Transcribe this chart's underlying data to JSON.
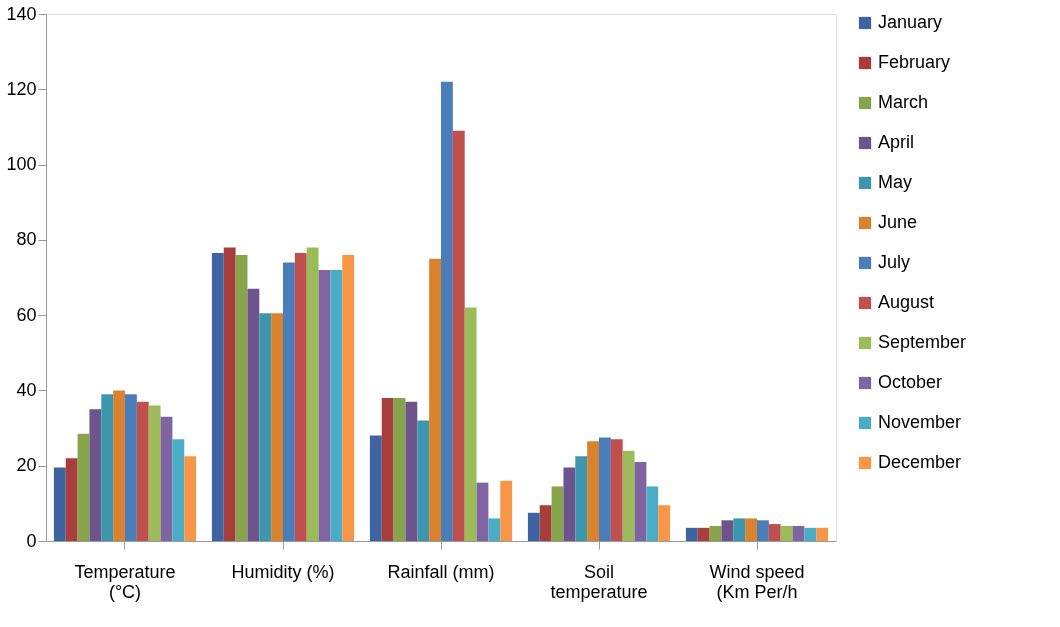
{
  "chart_data": {
    "type": "bar",
    "categories": [
      "Temperature (°C)",
      "Humidity (%)",
      "Rainfall (mm)",
      "Soil temperature",
      "Wind speed (Km Per/h"
    ],
    "series": [
      {
        "name": "January",
        "color": "#3d64a0",
        "values": [
          19.5,
          76.5,
          28,
          7.5,
          3.5
        ]
      },
      {
        "name": "February",
        "color": "#a83e3b",
        "values": [
          22,
          78,
          38,
          9.5,
          3.5
        ]
      },
      {
        "name": "March",
        "color": "#86a44a",
        "values": [
          28.5,
          76,
          38,
          14.5,
          4
        ]
      },
      {
        "name": "April",
        "color": "#6e548d",
        "values": [
          35,
          67,
          37,
          19.5,
          5.5
        ]
      },
      {
        "name": "May",
        "color": "#3c97ae",
        "values": [
          39,
          60.5,
          32,
          22.5,
          6
        ]
      },
      {
        "name": "June",
        "color": "#d9832f",
        "values": [
          40,
          60.5,
          75,
          26.5,
          6
        ]
      },
      {
        "name": "July",
        "color": "#4a7ebb",
        "values": [
          39,
          74,
          122,
          27.5,
          5.5
        ]
      },
      {
        "name": "August",
        "color": "#c0504d",
        "values": [
          37,
          76.5,
          109,
          27,
          4.5
        ]
      },
      {
        "name": "September",
        "color": "#9bbb59",
        "values": [
          36,
          78,
          62,
          24,
          4
        ]
      },
      {
        "name": "October",
        "color": "#8064a2",
        "values": [
          33,
          72,
          15.5,
          21,
          4
        ]
      },
      {
        "name": "November",
        "color": "#4bacc6",
        "values": [
          27,
          72,
          6,
          14.5,
          3.5
        ]
      },
      {
        "name": "December",
        "color": "#f79646",
        "values": [
          22.5,
          76,
          16,
          9.5,
          3.5
        ]
      }
    ],
    "ylim": [
      0,
      140
    ],
    "yticks": [
      0,
      20,
      40,
      60,
      80,
      100,
      120,
      140
    ],
    "grid": false,
    "legend": "right"
  }
}
